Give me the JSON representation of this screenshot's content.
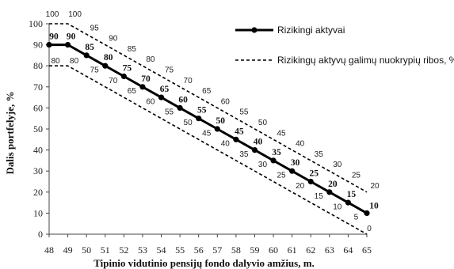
{
  "chart_data": {
    "type": "line",
    "xlabel": "Tipinio vidutinio pensijų fondo dalyvio amžius, m.",
    "ylabel": "Dalis portfelyje, %",
    "x": [
      48,
      49,
      50,
      51,
      52,
      53,
      54,
      55,
      56,
      57,
      58,
      59,
      60,
      61,
      62,
      63,
      64,
      65
    ],
    "xlim": [
      48,
      65
    ],
    "ylim": [
      0,
      100
    ],
    "x_ticks": [
      "48",
      "49",
      "50",
      "51",
      "52",
      "53",
      "54",
      "55",
      "56",
      "57",
      "58",
      "59",
      "60",
      "61",
      "62",
      "63",
      "64",
      "65"
    ],
    "y_ticks": [
      "0",
      "10",
      "20",
      "30",
      "40",
      "50",
      "60",
      "70",
      "80",
      "90",
      "100"
    ],
    "grid": false,
    "legend_position": "top-right",
    "series": [
      {
        "name": "Rizikingi aktyvai",
        "style": "solid-markers",
        "color": "#000000",
        "values": [
          90,
          90,
          85,
          80,
          75,
          70,
          65,
          60,
          55,
          50,
          45,
          40,
          35,
          30,
          25,
          20,
          15,
          10
        ],
        "labels": [
          "90",
          "90",
          "85",
          "80",
          "75",
          "70",
          "65",
          "60",
          "55",
          "50",
          "45",
          "40",
          "35",
          "30",
          "25",
          "20",
          "15",
          "10"
        ]
      },
      {
        "name": "Rizikingų aktyvų galimų nuokrypių ribos, %",
        "style": "dashed",
        "color": "#000000",
        "values": [
          100,
          100,
          95,
          90,
          85,
          80,
          75,
          70,
          65,
          60,
          55,
          50,
          45,
          40,
          35,
          30,
          25,
          20
        ],
        "labels": [
          "100",
          "100",
          "95",
          "90",
          "85",
          "80",
          "75",
          "70",
          "65",
          "60",
          "55",
          "50",
          "45",
          "40",
          "35",
          "30",
          "25",
          "20"
        ]
      },
      {
        "style": "dashed",
        "color": "#000000",
        "values": [
          80,
          80,
          75,
          70,
          65,
          60,
          55,
          50,
          45,
          40,
          35,
          30,
          25,
          20,
          15,
          10,
          5,
          0
        ],
        "labels": [
          "80",
          "80",
          "75",
          "70",
          "65",
          "60",
          "55",
          "50",
          "45",
          "40",
          "35",
          "30",
          "25",
          "20",
          "15",
          "10",
          "5",
          "0"
        ]
      }
    ]
  }
}
